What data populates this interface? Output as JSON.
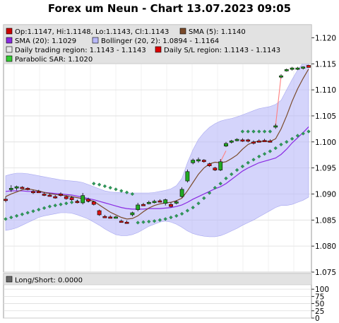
{
  "header": {
    "title": "Forex um Neun - Chart 13.07.2023 09:05"
  },
  "legend": [
    {
      "label": "Op:1.1147, Hi:1.1148, Lo:1.1143, Cl:1.1143",
      "color": "#cc0000"
    },
    {
      "label": "SMA (5): 1.1140",
      "color": "#7a4a2a"
    },
    {
      "label": "SMA (20): 1.1029",
      "color": "#8a2be2"
    },
    {
      "label": "Bollinger (20, 2): 1.0894 - 1.1164",
      "color": "#b8b8f8"
    },
    {
      "label": "Daily trading region: 1.1143 - 1.1143",
      "color": "#e8e8e8"
    },
    {
      "label": "Daily S/L region: 1.1143 - 1.1143",
      "color": "#dd0000"
    },
    {
      "label": "Parabolic SAR: 1.1020",
      "color": "#33cc33"
    }
  ],
  "sub_legend": {
    "label": "Long/Short: 0.0000",
    "color": "#666666"
  },
  "chart_data": [
    {
      "type": "candlestick",
      "title": "Forex um Neun - Chart 13.07.2023 09:05",
      "ylim": [
        1.075,
        1.1225
      ],
      "yticks": [
        1.075,
        1.08,
        1.085,
        1.09,
        1.095,
        1.1,
        1.105,
        1.11,
        1.115,
        1.12
      ],
      "ytick_labels": [
        "1.075",
        "1.080",
        "1.085",
        "1.090",
        "1.095",
        "1.100",
        "1.105",
        "1.110",
        "1.115",
        "1.120"
      ],
      "grid": true,
      "candles": [
        {
          "o": 1.089,
          "h": 1.0895,
          "l": 1.0884,
          "c": 1.0888
        },
        {
          "o": 1.091,
          "h": 1.0917,
          "l": 1.0904,
          "c": 1.0911
        },
        {
          "o": 1.0913,
          "h": 1.0916,
          "l": 1.0907,
          "c": 1.0914
        },
        {
          "o": 1.0913,
          "h": 1.0915,
          "l": 1.091,
          "c": 1.0912
        },
        {
          "o": 1.0911,
          "h": 1.0913,
          "l": 1.0907,
          "c": 1.0909
        },
        {
          "o": 1.0905,
          "h": 1.0908,
          "l": 1.09,
          "c": 1.0903
        },
        {
          "o": 1.0905,
          "h": 1.0908,
          "l": 1.0902,
          "c": 1.0903
        },
        {
          "o": 1.09,
          "h": 1.0903,
          "l": 1.0896,
          "c": 1.0899
        },
        {
          "o": 1.0898,
          "h": 1.0901,
          "l": 1.0895,
          "c": 1.0896
        },
        {
          "o": 1.0895,
          "h": 1.0898,
          "l": 1.0891,
          "c": 1.0894
        },
        {
          "o": 1.09,
          "h": 1.0903,
          "l": 1.0895,
          "c": 1.0897
        },
        {
          "o": 1.0895,
          "h": 1.0897,
          "l": 1.0889,
          "c": 1.0891
        },
        {
          "o": 1.0893,
          "h": 1.0896,
          "l": 1.0887,
          "c": 1.0889
        },
        {
          "o": 1.0886,
          "h": 1.0889,
          "l": 1.0883,
          "c": 1.0884
        },
        {
          "o": 1.0883,
          "h": 1.0902,
          "l": 1.088,
          "c": 1.0897
        },
        {
          "o": 1.089,
          "h": 1.0893,
          "l": 1.0884,
          "c": 1.0886
        },
        {
          "o": 1.0885,
          "h": 1.0887,
          "l": 1.0878,
          "c": 1.088
        },
        {
          "o": 1.0868,
          "h": 1.087,
          "l": 1.0858,
          "c": 1.086
        },
        {
          "o": 1.0857,
          "h": 1.086,
          "l": 1.0854,
          "c": 1.0856
        },
        {
          "o": 1.0856,
          "h": 1.0859,
          "l": 1.0854,
          "c": 1.0855
        },
        {
          "o": 1.0855,
          "h": 1.0858,
          "l": 1.0853,
          "c": 1.0856
        },
        {
          "o": 1.0848,
          "h": 1.0851,
          "l": 1.0845,
          "c": 1.0847
        },
        {
          "o": 1.0846,
          "h": 1.0849,
          "l": 1.0843,
          "c": 1.0845
        },
        {
          "o": 1.086,
          "h": 1.0866,
          "l": 1.0857,
          "c": 1.0864
        },
        {
          "o": 1.087,
          "h": 1.0883,
          "l": 1.0867,
          "c": 1.0879
        },
        {
          "o": 1.088,
          "h": 1.0883,
          "l": 1.0877,
          "c": 1.0879
        },
        {
          "o": 1.0883,
          "h": 1.0887,
          "l": 1.088,
          "c": 1.0884
        },
        {
          "o": 1.0885,
          "h": 1.0889,
          "l": 1.0882,
          "c": 1.0886
        },
        {
          "o": 1.0887,
          "h": 1.089,
          "l": 1.0884,
          "c": 1.0886
        },
        {
          "o": 1.0882,
          "h": 1.0891,
          "l": 1.0878,
          "c": 1.0889
        },
        {
          "o": 1.088,
          "h": 1.0884,
          "l": 1.0874,
          "c": 1.0876
        },
        {
          "o": 1.0883,
          "h": 1.0888,
          "l": 1.088,
          "c": 1.0885
        },
        {
          "o": 1.0895,
          "h": 1.0913,
          "l": 1.0893,
          "c": 1.0909
        },
        {
          "o": 1.0925,
          "h": 1.0947,
          "l": 1.0922,
          "c": 1.0943
        },
        {
          "o": 1.096,
          "h": 1.0968,
          "l": 1.0957,
          "c": 1.0965
        },
        {
          "o": 1.0965,
          "h": 1.097,
          "l": 1.096,
          "c": 1.0966
        },
        {
          "o": 1.0965,
          "h": 1.0967,
          "l": 1.096,
          "c": 1.0962
        },
        {
          "o": 1.0958,
          "h": 1.096,
          "l": 1.0952,
          "c": 1.0954
        },
        {
          "o": 1.095,
          "h": 1.0952,
          "l": 1.0944,
          "c": 1.0946
        },
        {
          "o": 1.0946,
          "h": 1.0967,
          "l": 1.0944,
          "c": 1.0962
        },
        {
          "o": 1.0992,
          "h": 1.1,
          "l": 1.099,
          "c": 1.0997
        },
        {
          "o": 1.1,
          "h": 1.1004,
          "l": 1.0997,
          "c": 1.1002
        },
        {
          "o": 1.1004,
          "h": 1.1007,
          "l": 1.1001,
          "c": 1.1005
        },
        {
          "o": 1.1004,
          "h": 1.1007,
          "l": 1.1,
          "c": 1.1003
        },
        {
          "o": 1.1004,
          "h": 1.1006,
          "l": 1.0999,
          "c": 1.1002
        },
        {
          "o": 1.1,
          "h": 1.1003,
          "l": 1.0995,
          "c": 1.0998
        },
        {
          "o": 1.1002,
          "h": 1.1005,
          "l": 1.0999,
          "c": 1.1001
        },
        {
          "o": 1.1003,
          "h": 1.1006,
          "l": 1.1,
          "c": 1.1002
        },
        {
          "o": 1.1002,
          "h": 1.1005,
          "l": 1.0999,
          "c": 1.1001
        },
        {
          "o": 1.103,
          "h": 1.1035,
          "l": 1.1025,
          "c": 1.1031
        },
        {
          "o": 1.1126,
          "h": 1.113,
          "l": 1.1122,
          "c": 1.1127
        },
        {
          "o": 1.1138,
          "h": 1.1141,
          "l": 1.1135,
          "c": 1.1139
        },
        {
          "o": 1.114,
          "h": 1.1144,
          "l": 1.1137,
          "c": 1.1142
        },
        {
          "o": 1.1141,
          "h": 1.1144,
          "l": 1.1138,
          "c": 1.1142
        },
        {
          "o": 1.1142,
          "h": 1.1145,
          "l": 1.1139,
          "c": 1.1144
        },
        {
          "o": 1.1147,
          "h": 1.1148,
          "l": 1.1143,
          "c": 1.1143
        }
      ],
      "sma5": [
        1.0895,
        1.09,
        1.0904,
        1.0908,
        1.091,
        1.0908,
        1.0906,
        1.0903,
        1.0901,
        1.0899,
        1.0898,
        1.0897,
        1.0895,
        1.0893,
        1.0891,
        1.0889,
        1.0886,
        1.0879,
        1.0872,
        1.0865,
        1.086,
        1.0855,
        1.0852,
        1.0853,
        1.0858,
        1.0866,
        1.0873,
        1.0878,
        1.0881,
        1.0883,
        1.0884,
        1.0887,
        1.0892,
        1.0906,
        1.0922,
        1.0938,
        1.095,
        1.0958,
        1.0961,
        1.096,
        1.0962,
        1.0968,
        1.0975,
        1.0986,
        1.0995,
        1.1,
        1.1001,
        1.1001,
        1.1001,
        1.1006,
        1.1025,
        1.105,
        1.1078,
        1.1102,
        1.1122,
        1.114
      ],
      "sma20": [
        1.0905,
        1.0906,
        1.0906,
        1.0906,
        1.0905,
        1.0905,
        1.0904,
        1.0903,
        1.0902,
        1.0901,
        1.09,
        1.0899,
        1.0898,
        1.0896,
        1.0894,
        1.0891,
        1.0889,
        1.0886,
        1.0883,
        1.088,
        1.0877,
        1.0874,
        1.0872,
        1.0871,
        1.0871,
        1.0871,
        1.0872,
        1.0872,
        1.0872,
        1.0873,
        1.0874,
        1.0876,
        1.0879,
        1.0884,
        1.089,
        1.0895,
        1.09,
        1.0905,
        1.091,
        1.0914,
        1.092,
        1.0928,
        1.0936,
        1.0944,
        1.095,
        1.0955,
        1.096,
        1.0963,
        1.0966,
        1.0969,
        1.0976,
        1.0986,
        1.0998,
        1.1008,
        1.1018,
        1.1029
      ],
      "bb_upper": [
        1.0935,
        1.0938,
        1.094,
        1.094,
        1.0939,
        1.0937,
        1.0935,
        1.0933,
        1.0931,
        1.0929,
        1.0927,
        1.0926,
        1.0925,
        1.0924,
        1.0922,
        1.0918,
        1.0914,
        1.091,
        1.0906,
        1.0904,
        1.0903,
        1.0903,
        1.0902,
        1.0902,
        1.0902,
        1.0902,
        1.0902,
        1.0903,
        1.0905,
        1.0907,
        1.091,
        1.0916,
        1.093,
        1.096,
        1.0985,
        1.1005,
        1.1018,
        1.1028,
        1.1035,
        1.104,
        1.1043,
        1.1045,
        1.1048,
        1.1052,
        1.1056,
        1.106,
        1.1064,
        1.1066,
        1.1068,
        1.1072,
        1.108,
        1.11,
        1.112,
        1.1138,
        1.1152,
        1.1164
      ],
      "bb_lower": [
        1.083,
        1.0832,
        1.0835,
        1.084,
        1.0845,
        1.085,
        1.0855,
        1.0858,
        1.086,
        1.0862,
        1.0864,
        1.0864,
        1.0863,
        1.086,
        1.0856,
        1.0852,
        1.0846,
        1.084,
        1.0833,
        1.0827,
        1.0822,
        1.082,
        1.082,
        1.0822,
        1.0826,
        1.0832,
        1.0838,
        1.0842,
        1.0846,
        1.0848,
        1.0846,
        1.0842,
        1.0836,
        1.0829,
        1.0824,
        1.0821,
        1.0819,
        1.0818,
        1.0818,
        1.082,
        1.0824,
        1.0829,
        1.0834,
        1.084,
        1.0845,
        1.085,
        1.0856,
        1.0862,
        1.0868,
        1.0874,
        1.0878,
        1.0878,
        1.088,
        1.0884,
        1.0888,
        1.0894
      ],
      "psar": [
        1.0852,
        1.0855,
        1.0858,
        1.0861,
        1.0864,
        1.0867,
        1.087,
        1.0873,
        1.0876,
        1.0878,
        1.088,
        1.0882,
        1.0884,
        1.0885,
        1.0886,
        1.0887,
        1.092,
        1.0918,
        1.0915,
        1.0912,
        1.0909,
        1.0906,
        1.0903,
        1.09,
        1.0845,
        1.0846,
        1.0847,
        1.0848,
        1.085,
        1.0852,
        1.0855,
        1.0858,
        1.0862,
        1.0868,
        1.0874,
        1.0882,
        1.0892,
        1.0902,
        1.0912,
        1.092,
        1.093,
        1.0938,
        1.0946,
        1.0953,
        1.096,
        1.0966,
        1.0972,
        1.0977,
        1.0982,
        1.0988,
        1.0995,
        1.1,
        1.1006,
        1.1012,
        1.1016,
        1.102
      ],
      "psar_flip_top": [
        null,
        null,
        null,
        null,
        null,
        null,
        null,
        null,
        null,
        null,
        null,
        null,
        null,
        null,
        null,
        null,
        null,
        null,
        null,
        null,
        null,
        null,
        null,
        null,
        null,
        null,
        null,
        null,
        null,
        null,
        null,
        null,
        null,
        null,
        null,
        null,
        null,
        null,
        null,
        null,
        null,
        null,
        null,
        1.102,
        1.102,
        1.102,
        1.102,
        1.102,
        1.102,
        null,
        null,
        null,
        null,
        null,
        null,
        null
      ],
      "trend_lines": [
        {
          "from": 40,
          "to": 39,
          "y1": 1.0983,
          "y2": 1.0962
        },
        {
          "from": 49,
          "to": 50,
          "y1": 1.1031,
          "y2": 1.1127
        }
      ]
    },
    {
      "type": "line",
      "title": "Long/Short: 0.0000",
      "ylim": [
        0,
        115
      ],
      "yticks": [
        0,
        25,
        50,
        75,
        100
      ],
      "ytick_labels": [
        "0",
        "25",
        "50",
        "75",
        "100"
      ],
      "values": []
    }
  ]
}
